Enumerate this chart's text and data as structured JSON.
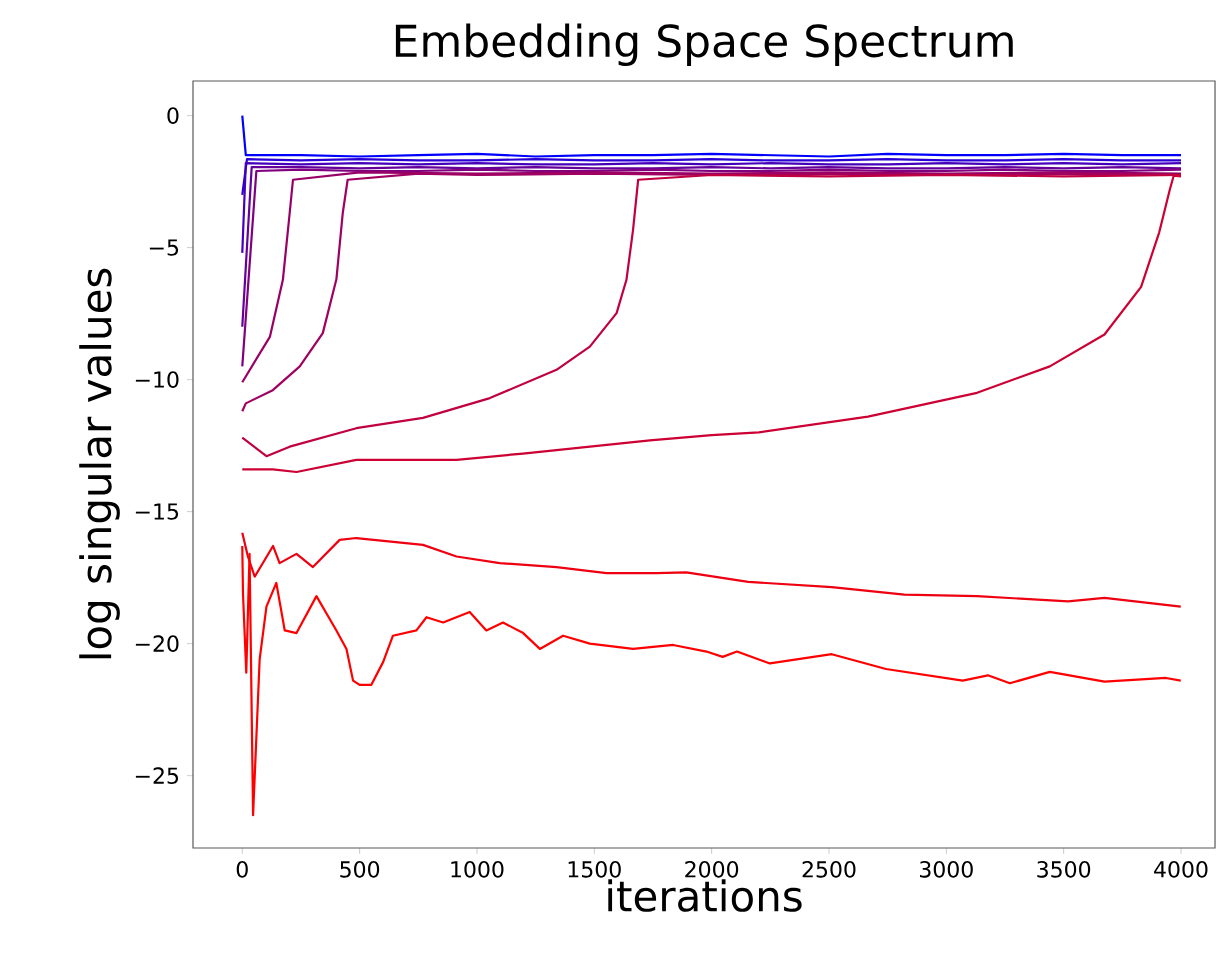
{
  "chart_data": {
    "type": "line",
    "title": "Embedding Space Spectrum",
    "xlabel": "iterations",
    "ylabel": "log singular values",
    "xlim": [
      -210,
      4145
    ],
    "ylim": [
      -27.74,
      1.31
    ],
    "xticks": [
      0,
      500,
      1000,
      1500,
      2000,
      2500,
      3000,
      3500,
      4000
    ],
    "yticks": [
      {
        "value": -25,
        "label": "−25"
      },
      {
        "value": -20,
        "label": "−20"
      },
      {
        "value": -15,
        "label": "−15"
      },
      {
        "value": -10,
        "label": "−10"
      },
      {
        "value": -5,
        "label": "−5"
      },
      0
    ],
    "series": [
      {
        "color": "#0000ff",
        "x": [
          0,
          15,
          250,
          500,
          750,
          1000,
          1250,
          1500,
          1750,
          2000,
          2250,
          2500,
          2750,
          3000,
          3250,
          3500,
          3750,
          4000
        ],
        "values": [
          0,
          -1.5,
          -1.5,
          -1.55,
          -1.5,
          -1.45,
          -1.55,
          -1.5,
          -1.5,
          -1.45,
          -1.5,
          -1.55,
          -1.45,
          -1.5,
          -1.5,
          -1.45,
          -1.5,
          -1.5
        ]
      },
      {
        "color": "#2a00d5",
        "x": [
          0,
          20,
          250,
          500,
          750,
          1000,
          1250,
          1500,
          1750,
          2000,
          2250,
          2500,
          2750,
          3000,
          3250,
          3500,
          3750,
          4000
        ],
        "values": [
          -3,
          -1.65,
          -1.7,
          -1.65,
          -1.7,
          -1.7,
          -1.65,
          -1.7,
          -1.7,
          -1.65,
          -1.7,
          -1.7,
          -1.65,
          -1.7,
          -1.7,
          -1.65,
          -1.7,
          -1.7
        ]
      },
      {
        "color": "#4400bb",
        "x": [
          0,
          15,
          250,
          500,
          750,
          1000,
          1250,
          1500,
          1750,
          2000,
          2250,
          2500,
          2750,
          3000,
          3250,
          3500,
          3750,
          4000
        ],
        "values": [
          -5.2,
          -1.8,
          -1.85,
          -1.8,
          -1.85,
          -1.8,
          -1.85,
          -1.85,
          -1.8,
          -1.85,
          -1.8,
          -1.85,
          -1.85,
          -1.8,
          -1.85,
          -1.8,
          -1.85,
          -1.8
        ]
      },
      {
        "color": "#66009a",
        "x": [
          0,
          40,
          250,
          500,
          750,
          1000,
          1250,
          1500,
          1750,
          2000,
          2250,
          2500,
          2750,
          3000,
          3250,
          3500,
          3750,
          4000
        ],
        "values": [
          -8,
          -1.95,
          -1.95,
          -2.0,
          -1.95,
          -2.0,
          -1.95,
          -2.0,
          -2.0,
          -1.95,
          -2.0,
          -1.95,
          -2.0,
          -2.0,
          -1.95,
          -2.0,
          -1.95,
          -2.0
        ]
      },
      {
        "color": "#80007f",
        "x": [
          0,
          60,
          250,
          500,
          750,
          1000,
          1250,
          1500,
          1750,
          2000,
          2250,
          2500,
          2750,
          3000,
          3250,
          3500,
          3750,
          4000
        ],
        "values": [
          -9.5,
          -2.1,
          -2.05,
          -2.1,
          -2.1,
          -2.05,
          -2.1,
          -2.1,
          -2.05,
          -2.1,
          -2.1,
          -2.05,
          -2.1,
          -2.1,
          -2.05,
          -2.1,
          -2.1,
          -2.05
        ]
      },
      {
        "color": "#990066",
        "x": [
          0,
          118,
          173,
          202,
          216,
          500,
          1000,
          1500,
          2000,
          2500,
          3000,
          3500,
          4000
        ],
        "values": [
          -10.1,
          -8.37,
          -6.22,
          -3.69,
          -2.43,
          -2.15,
          -2.2,
          -2.15,
          -2.2,
          -2.15,
          -2.2,
          -2.15,
          -2.2
        ]
      },
      {
        "color": "#a00060",
        "x": [
          0,
          15,
          130,
          245,
          343,
          401,
          428,
          449,
          750,
          1000,
          1500,
          2000,
          2500,
          3000,
          3500,
          4000
        ],
        "values": [
          -11.2,
          -10.9,
          -10.4,
          -9.5,
          -8.24,
          -6.2,
          -3.7,
          -2.43,
          -2.2,
          -2.25,
          -2.2,
          -2.25,
          -2.2,
          -2.25,
          -2.2,
          -2.25
        ]
      },
      {
        "color": "#c0003f",
        "x": [
          0,
          103,
          202,
          486,
          770,
          1055,
          1339,
          1481,
          1595,
          1637,
          1665,
          1687,
          2000,
          2500,
          3000,
          3500,
          4000
        ],
        "values": [
          -12.2,
          -12.9,
          -12.54,
          -11.84,
          -11.45,
          -10.7,
          -9.63,
          -8.75,
          -7.48,
          -6.22,
          -4.34,
          -2.43,
          -2.25,
          -2.3,
          -2.25,
          -2.3,
          -2.25
        ]
      },
      {
        "color": "#cc0033",
        "x": [
          0,
          130,
          231,
          486,
          913,
          1196,
          1737,
          2000,
          2201,
          2666,
          3131,
          3441,
          3674,
          3830,
          3907,
          3953,
          3969,
          4000
        ],
        "values": [
          -13.4,
          -13.4,
          -13.5,
          -13.04,
          -13.04,
          -12.8,
          -12.3,
          -12.1,
          -12.0,
          -11.4,
          -10.5,
          -9.5,
          -8.29,
          -6.49,
          -4.43,
          -2.78,
          -2.28,
          -2.3
        ]
      },
      {
        "color": "#ee0011",
        "x": [
          0,
          24,
          53,
          131,
          159,
          231,
          301,
          415,
          486,
          770,
          913,
          1097,
          1339,
          1552,
          1765,
          1892,
          2156,
          2512,
          2821,
          3131,
          3519,
          3674,
          3999
        ],
        "values": [
          -15.8,
          -16.7,
          -17.46,
          -16.3,
          -16.95,
          -16.6,
          -17.1,
          -16.07,
          -16.0,
          -16.26,
          -16.7,
          -16.95,
          -17.1,
          -17.33,
          -17.33,
          -17.3,
          -17.66,
          -17.86,
          -18.14,
          -18.2,
          -18.4,
          -18.27,
          -18.6
        ]
      },
      {
        "color": "#ff0000",
        "x": [
          0,
          3,
          17,
          31,
          46,
          74,
          103,
          145,
          181,
          231,
          316,
          401,
          444,
          472,
          500,
          550,
          600,
          642,
          742,
          785,
          856,
          969,
          1040,
          1111,
          1197,
          1268,
          1367,
          1481,
          1665,
          1836,
          1978,
          2047,
          2108,
          2248,
          2512,
          2743,
          3070,
          3177,
          3271,
          3441,
          3674,
          3936,
          3999
        ],
        "values": [
          -16.3,
          -18.1,
          -21.1,
          -16.6,
          -26.5,
          -20.6,
          -18.6,
          -17.7,
          -19.5,
          -19.6,
          -18.2,
          -19.5,
          -20.2,
          -21.4,
          -21.56,
          -21.56,
          -20.7,
          -19.7,
          -19.5,
          -19.0,
          -19.2,
          -18.8,
          -19.5,
          -19.2,
          -19.6,
          -20.2,
          -19.7,
          -20.0,
          -20.2,
          -20.05,
          -20.3,
          -20.5,
          -20.3,
          -20.75,
          -20.4,
          -20.96,
          -21.4,
          -21.2,
          -21.5,
          -21.07,
          -21.44,
          -21.3,
          -21.4
        ]
      }
    ]
  }
}
